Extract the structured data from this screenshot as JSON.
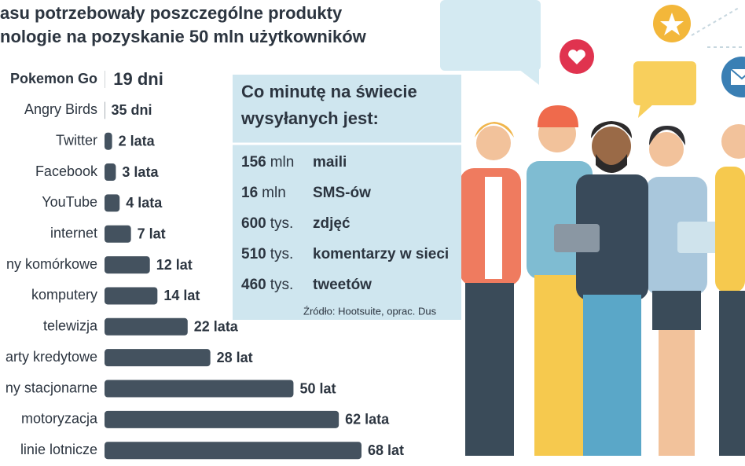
{
  "chart_data": {
    "type": "bar",
    "orientation": "horizontal",
    "title": [
      "asu potrzebowały poszczególne produkty",
      "nologie na pozyskanie 50 mln użytkowników"
    ],
    "categories": [
      "Pokemon Go",
      "Angry Birds",
      "Twitter",
      "Facebook",
      "YouTube",
      "internet",
      "ny komórkowe",
      "komputery",
      "telewizja",
      "arty kredytowe",
      "ny stacjonarne",
      "motoryzacja",
      "linie lotnicze"
    ],
    "values": [
      0.052,
      0.096,
      2,
      3,
      4,
      7,
      12,
      14,
      22,
      28,
      50,
      62,
      68
    ],
    "value_labels": [
      "19 dni",
      "35 dni",
      "2 lata",
      "3 lata",
      "4 lata",
      "7 lat",
      "12 lat",
      "14 lat",
      "22 lata",
      "28 lat",
      "50 lat",
      "62 lata",
      "68 lat"
    ],
    "color": "#44525f",
    "highlight_color": "#d31f4b"
  },
  "panel": {
    "title": [
      "Co minutę na świecie",
      "wysyłanych jest:"
    ],
    "rows": [
      {
        "value": 156,
        "unit": "mln",
        "label": "maili"
      },
      {
        "value": 16,
        "unit": "mln",
        "label": "SMS-ów"
      },
      {
        "value": 600,
        "unit": "tys.",
        "label": "zdjęć"
      },
      {
        "value": 510,
        "unit": "tys.",
        "label": "komentarzy w sieci"
      },
      {
        "value": 460,
        "unit": "tys.",
        "label": "tweetów"
      }
    ],
    "source": "Źródło: Hootsuite, oprac. Dus"
  }
}
